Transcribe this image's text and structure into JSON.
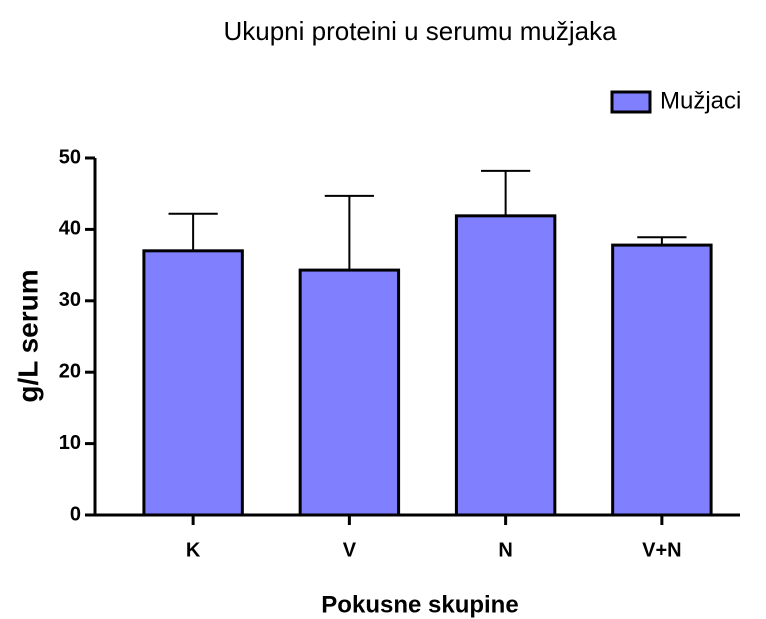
{
  "chart_data": {
    "type": "bar",
    "title": "Ukupni proteini u serumu mužjaka",
    "x_label": "Pokusne skupine",
    "y_label": "g/L serum",
    "categories": [
      "K",
      "V",
      "N",
      "V+N"
    ],
    "series": [
      {
        "name": "Mužjaci",
        "color": "#8080ff",
        "values": [
          37.0,
          34.3,
          41.9,
          37.8
        ],
        "errors": [
          5.2,
          10.4,
          6.3,
          1.1
        ]
      }
    ],
    "ylim": [
      0,
      50
    ],
    "yticks": [
      0,
      10,
      20,
      30,
      40,
      50
    ],
    "legend": "top-right"
  }
}
